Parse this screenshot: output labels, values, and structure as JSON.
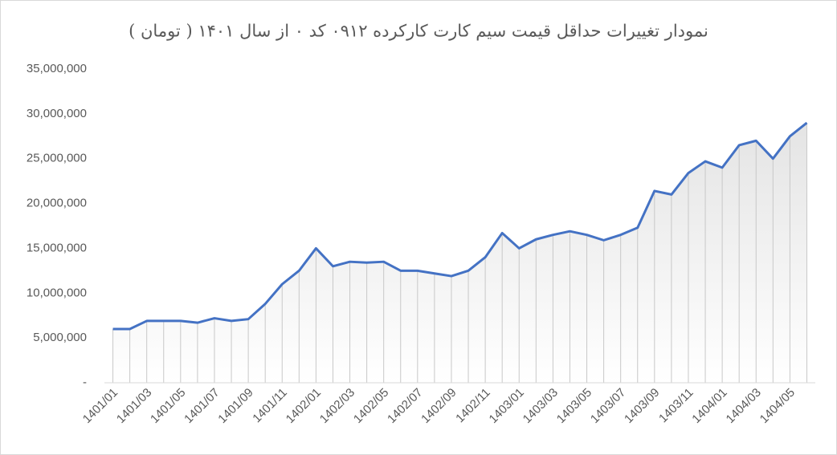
{
  "chart_data": {
    "type": "line",
    "title": "نمودار تغییرات حداقل قیمت سیم کارت کارکرده ۰۹۱۲ کد ۰ از سال ۱۴۰۱ ( تومان )",
    "categories": [
      "1401/01",
      null,
      "1401/03",
      null,
      "1401/05",
      null,
      "1401/07",
      null,
      "1401/09",
      null,
      "1401/11",
      null,
      "1402/01",
      null,
      "1402/03",
      null,
      "1402/05",
      null,
      "1402/07",
      null,
      "1402/09",
      null,
      "1402/11",
      null,
      "1403/01",
      null,
      "1403/03",
      null,
      "1403/05",
      null,
      "1403/07",
      null,
      "1403/09",
      null,
      "1403/11",
      null,
      "1404/01",
      null,
      "1404/03",
      null,
      "1404/05",
      null
    ],
    "values": [
      6000000,
      6000000,
      6900000,
      6900000,
      6900000,
      6700000,
      7200000,
      6900000,
      7100000,
      8800000,
      11000000,
      12500000,
      15000000,
      13000000,
      13500000,
      13400000,
      13500000,
      12500000,
      12500000,
      12200000,
      11900000,
      12500000,
      14000000,
      16700000,
      15000000,
      16000000,
      16500000,
      16900000,
      16500000,
      15900000,
      16500000,
      17300000,
      21400000,
      21000000,
      23400000,
      24700000,
      24000000,
      26500000,
      27000000,
      25000000,
      27500000,
      29000000
    ],
    "color": "#4472c4",
    "ylim": [
      0,
      35000000
    ],
    "yticks": [
      {
        "value": 0,
        "label": "-"
      },
      {
        "value": 5000000,
        "label": "5,000,000"
      },
      {
        "value": 10000000,
        "label": "10,000,000"
      },
      {
        "value": 15000000,
        "label": "15,000,000"
      },
      {
        "value": 20000000,
        "label": "20,000,000"
      },
      {
        "value": 25000000,
        "label": "25,000,000"
      },
      {
        "value": 30000000,
        "label": "30,000,000"
      },
      {
        "value": 35000000,
        "label": "35,000,000"
      }
    ],
    "grid": false
  }
}
